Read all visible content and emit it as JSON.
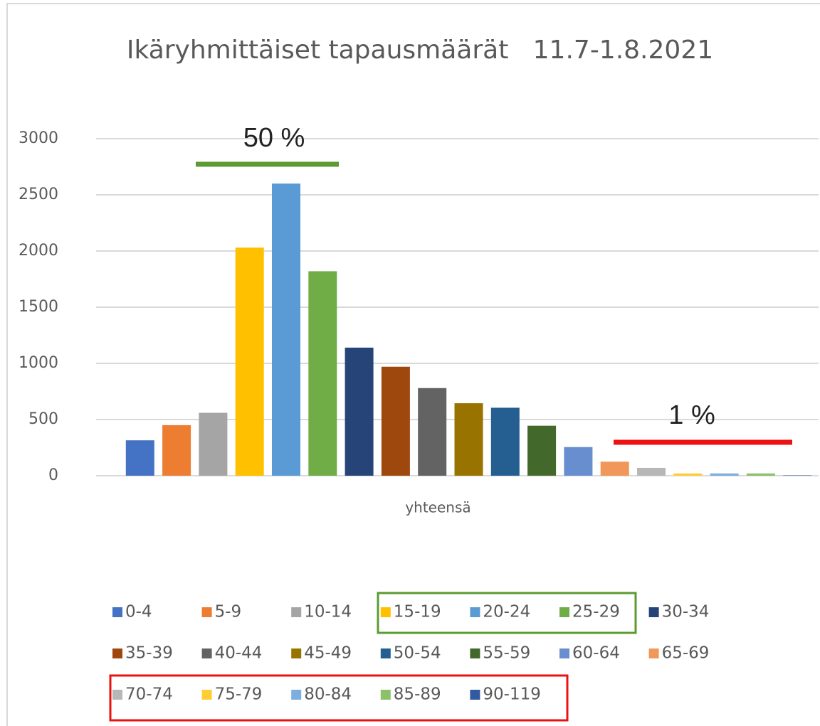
{
  "chart_data": {
    "type": "bar",
    "title": "Ikäryhmittäiset tapausmäärät   11.7-1.8.2021",
    "categories": [
      "yhteensä"
    ],
    "series": [
      {
        "name": "0-4",
        "color": "#4472c4",
        "values": [
          315
        ]
      },
      {
        "name": "5-9",
        "color": "#ed7d31",
        "values": [
          450
        ]
      },
      {
        "name": "10-14",
        "color": "#a5a5a5",
        "values": [
          560
        ]
      },
      {
        "name": "15-19",
        "color": "#ffc000",
        "values": [
          2030
        ]
      },
      {
        "name": "20-24",
        "color": "#5b9bd5",
        "values": [
          2600
        ]
      },
      {
        "name": "25-29",
        "color": "#70ad47",
        "values": [
          1820
        ]
      },
      {
        "name": "30-34",
        "color": "#264478",
        "values": [
          1140
        ]
      },
      {
        "name": "35-39",
        "color": "#9e480e",
        "values": [
          970
        ]
      },
      {
        "name": "40-44",
        "color": "#636363",
        "values": [
          780
        ]
      },
      {
        "name": "45-49",
        "color": "#997300",
        "values": [
          645
        ]
      },
      {
        "name": "50-54",
        "color": "#255e91",
        "values": [
          605
        ]
      },
      {
        "name": "55-59",
        "color": "#43682b",
        "values": [
          445
        ]
      },
      {
        "name": "60-64",
        "color": "#698ed0",
        "values": [
          255
        ]
      },
      {
        "name": "65-69",
        "color": "#f1975a",
        "values": [
          125
        ]
      },
      {
        "name": "70-74",
        "color": "#b7b7b7",
        "values": [
          70
        ]
      },
      {
        "name": "75-79",
        "color": "#ffcd33",
        "values": [
          20
        ]
      },
      {
        "name": "80-84",
        "color": "#7cafdd",
        "values": [
          20
        ]
      },
      {
        "name": "85-89",
        "color": "#8cc168",
        "values": [
          20
        ]
      },
      {
        "name": "90-119",
        "color": "#335aa1",
        "values": [
          3
        ]
      }
    ],
    "ylim": [
      0,
      3000
    ],
    "yticks": [
      0,
      500,
      1000,
      1500,
      2000,
      2500,
      3000
    ],
    "grid": true,
    "legend": "bottom",
    "annotations": [
      "50 %",
      "1 %"
    ]
  }
}
